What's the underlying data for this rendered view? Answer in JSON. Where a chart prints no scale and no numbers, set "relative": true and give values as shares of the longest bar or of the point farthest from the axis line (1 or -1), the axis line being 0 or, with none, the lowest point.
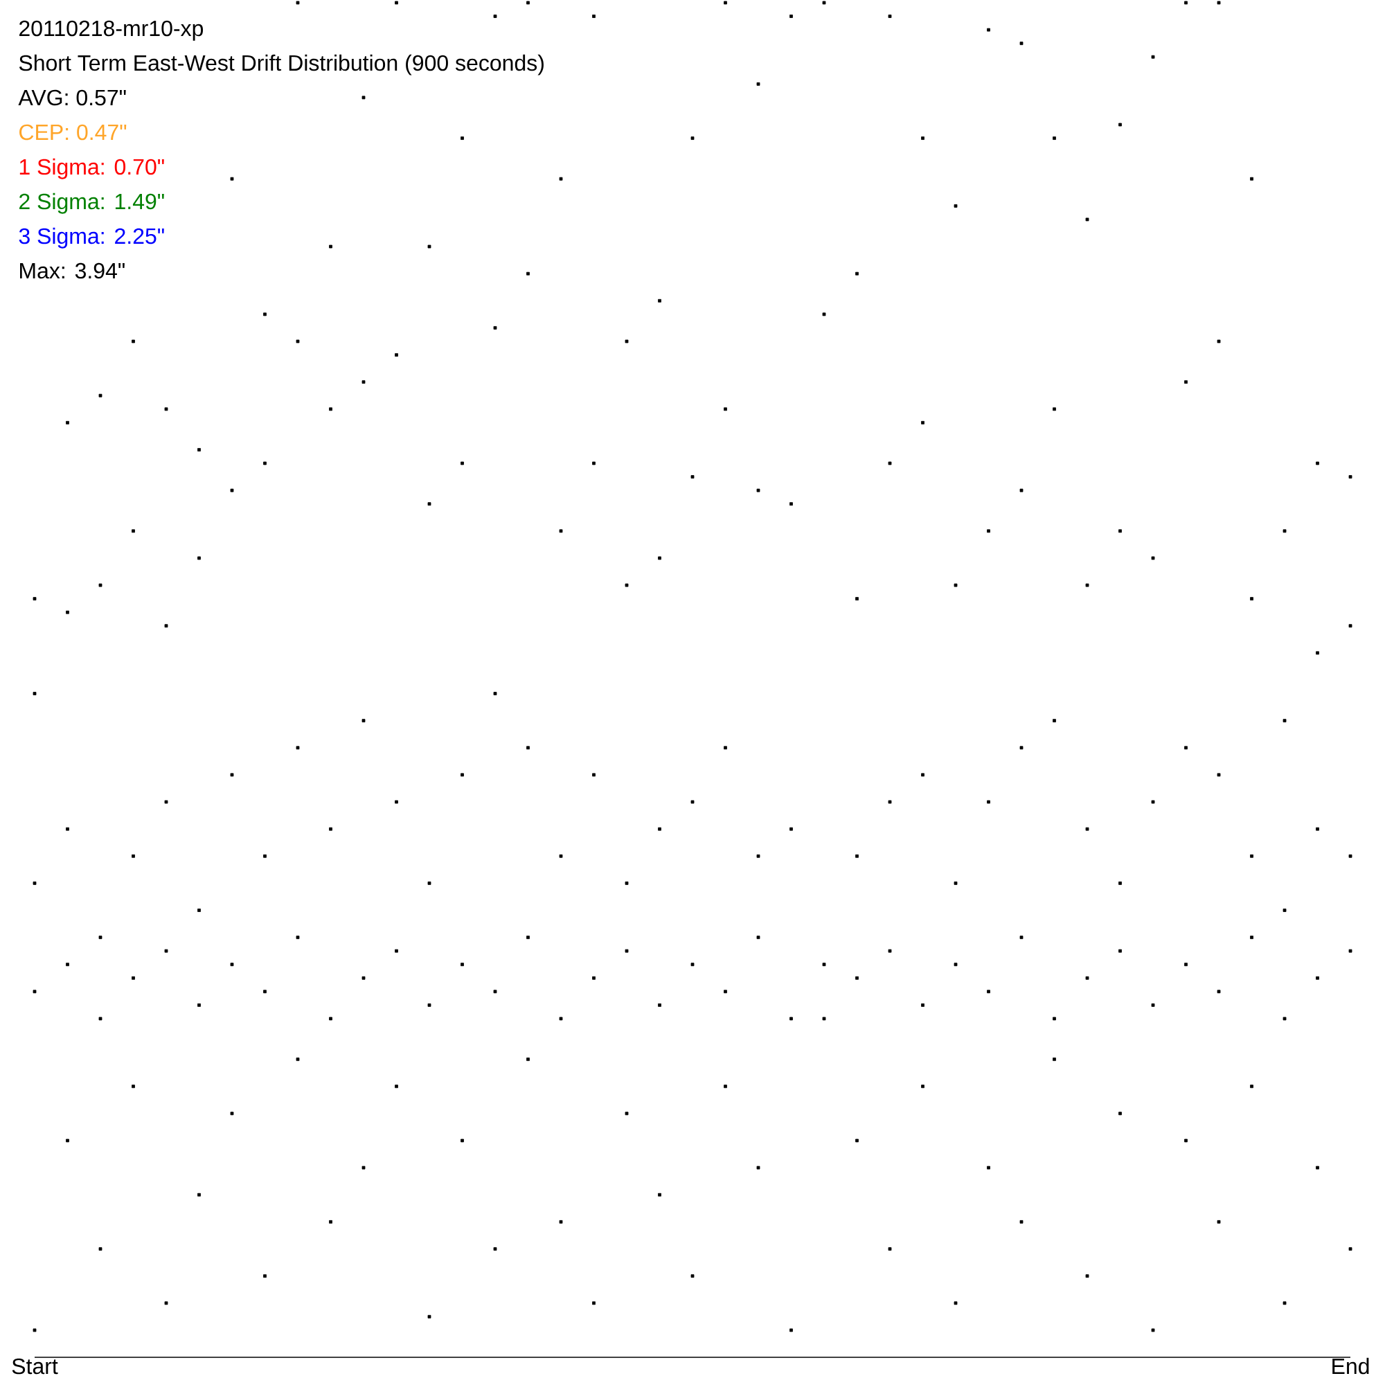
{
  "chart_data": {
    "type": "scatter",
    "title": "20110218-mr10-xp",
    "subtitle": "Short Term East-West Drift Distribution (900 seconds)",
    "annotations": [
      "AVG: 0.57\"",
      "CEP: 0.47\"",
      "1 Sigma: 0.70\"",
      "2 Sigma: 1.49\"",
      "3 Sigma: 2.25\"",
      "Max: 3.94\""
    ],
    "relative": true,
    "marker": "square",
    "categories": [
      "Start",
      null,
      null,
      null,
      null,
      null,
      null,
      null,
      null,
      null,
      null,
      null,
      null,
      null,
      null,
      null,
      null,
      null,
      null,
      null,
      null,
      null,
      null,
      null,
      null,
      null,
      null,
      null,
      null,
      null,
      null,
      null,
      null,
      null,
      null,
      null,
      null,
      null,
      null,
      null,
      "End"
    ],
    "series": [
      {
        "color": "#000000",
        "values": [
          0.56,
          0.69,
          0.71,
          0.75,
          0.7,
          0.67,
          0.87,
          0.77,
          1.0,
          0.82,
          0.93,
          1.0,
          0.82,
          0.9,
          0.99,
          1.0,
          0.87,
          0.99,
          0.75,
          0.78,
          0.9,
          1.0,
          0.94,
          0.99,
          1.0,
          0.8,
          0.99,
          0.9,
          0.85,
          0.98,
          0.97,
          0.9,
          0.84,
          0.91,
          0.96,
          1.0,
          1.0,
          0.87,
          0.61,
          0.66,
          0.65
        ]
      },
      {
        "color": "#000000",
        "values": [
          0.49,
          0.55,
          0.57,
          0.61,
          0.54,
          0.59,
          0.64,
          0.66,
          0.75,
          0.7,
          0.72,
          0.74,
          0.63,
          0.66,
          0.76,
          0.8,
          0.61,
          0.66,
          0.57,
          0.59,
          0.65,
          0.7,
          0.64,
          0.63,
          0.77,
          0.56,
          0.66,
          0.69,
          0.57,
          0.61,
          0.64,
          0.7,
          0.57,
          0.61,
          0.59,
          0.72,
          0.75,
          0.56,
          0.47,
          0.52,
          0.54
        ]
      },
      {
        "color": "#000000",
        "values": [
          0.35,
          0.39,
          0.31,
          0.37,
          0.41,
          0.33,
          0.43,
          0.37,
          0.45,
          0.39,
          0.47,
          0.41,
          0.35,
          0.43,
          0.49,
          0.45,
          0.37,
          0.43,
          0.35,
          0.39,
          0.41,
          0.45,
          0.37,
          0.39,
          0.25,
          0.37,
          0.41,
          0.43,
          0.35,
          0.41,
          0.45,
          0.47,
          0.39,
          0.35,
          0.41,
          0.45,
          0.43,
          0.37,
          0.33,
          0.39,
          0.37
        ]
      },
      {
        "color": "#000000",
        "values": [
          0.27,
          0.29,
          0.25,
          0.28,
          0.3,
          0.26,
          0.29,
          0.27,
          0.31,
          0.25,
          0.28,
          0.3,
          0.26,
          0.29,
          0.27,
          0.31,
          0.25,
          0.28,
          0.3,
          0.26,
          0.29,
          0.27,
          0.31,
          0.25,
          0.29,
          0.28,
          0.3,
          0.26,
          0.29,
          0.27,
          0.31,
          0.25,
          0.28,
          0.3,
          0.26,
          0.29,
          0.27,
          0.31,
          0.25,
          0.28,
          0.3
        ]
      },
      {
        "color": "#000000",
        "values": [
          0.02,
          0.16,
          0.08,
          0.2,
          0.04,
          0.12,
          0.18,
          0.06,
          0.22,
          0.1,
          0.14,
          0.2,
          0.03,
          0.16,
          0.08,
          0.22,
          0.1,
          0.04,
          0.18,
          0.12,
          0.06,
          0.2,
          0.14,
          0.02,
          null,
          0.16,
          0.08,
          0.2,
          0.04,
          0.14,
          0.1,
          0.22,
          0.06,
          0.18,
          0.02,
          0.16,
          0.1,
          0.2,
          0.04,
          0.14,
          0.08
        ]
      }
    ]
  }
}
